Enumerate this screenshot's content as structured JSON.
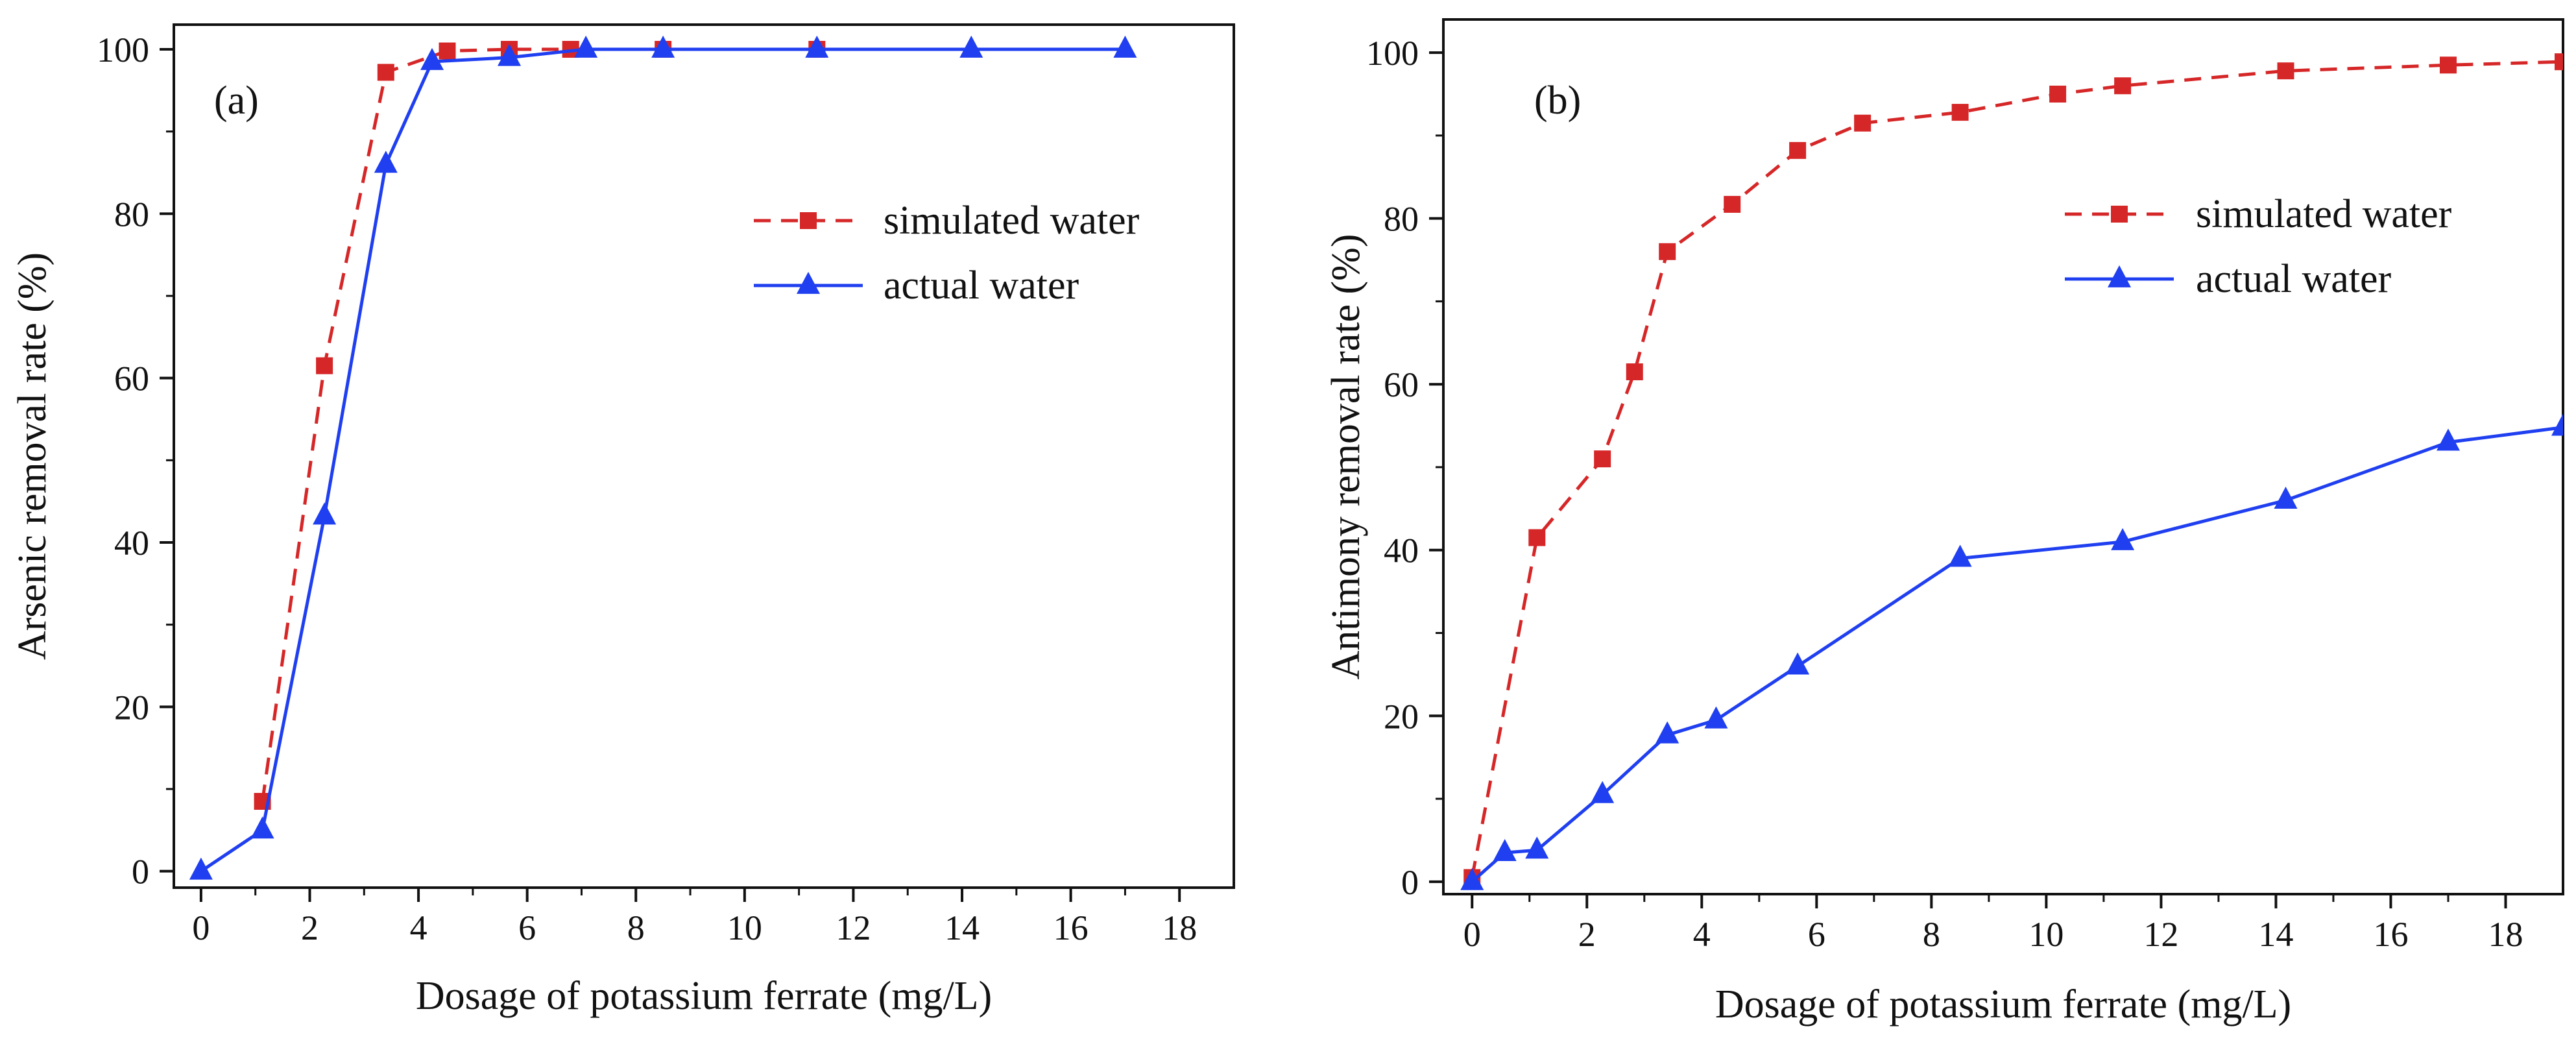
{
  "chart_data": [
    {
      "type": "line",
      "panel_label": "(a)",
      "xlabel": "Dosage of potassium ferrate (mg/L)",
      "ylabel": "Arsenic removal rate (%)",
      "xlim": [
        -0.5,
        19
      ],
      "ylim": [
        -2,
        103
      ],
      "xticks": [
        0,
        2,
        4,
        6,
        8,
        10,
        12,
        14,
        16,
        18
      ],
      "yticks": [
        0,
        20,
        40,
        60,
        80,
        100
      ],
      "legend_position": "upper-right",
      "grid": false,
      "series": [
        {
          "name": "simulated water",
          "color": "#d62728",
          "line_style": "dashed",
          "marker": "square",
          "points": [
            [
              1.13,
              8.5
            ],
            [
              2.27,
              61.5
            ],
            [
              3.4,
              97.2
            ],
            [
              4.53,
              99.8
            ],
            [
              5.67,
              100
            ],
            [
              6.8,
              100
            ],
            [
              8.5,
              100
            ],
            [
              11.33,
              100
            ]
          ]
        },
        {
          "name": "actual water",
          "color": "#1f3ff0",
          "line_style": "solid",
          "marker": "triangle",
          "points": [
            [
              0,
              0
            ],
            [
              1.13,
              5.0
            ],
            [
              2.27,
              43.2
            ],
            [
              3.4,
              86.0
            ],
            [
              4.25,
              98.5
            ],
            [
              5.67,
              99.0
            ],
            [
              7.08,
              100
            ],
            [
              8.5,
              100
            ],
            [
              11.33,
              100
            ],
            [
              14.17,
              100
            ],
            [
              17.0,
              100
            ]
          ]
        }
      ]
    },
    {
      "type": "line",
      "panel_label": "(b)",
      "xlabel": "Dosage of potassium ferrate (mg/L)",
      "ylabel": "Antimony removal rate (%)",
      "xlim": [
        -0.5,
        19
      ],
      "ylim": [
        -1.5,
        104
      ],
      "xticks": [
        0,
        2,
        4,
        6,
        8,
        10,
        12,
        14,
        16,
        18
      ],
      "yticks": [
        0,
        20,
        40,
        60,
        80,
        100
      ],
      "legend_position": "upper-right",
      "grid": false,
      "series": [
        {
          "name": "simulated water",
          "color": "#d62728",
          "line_style": "dashed",
          "marker": "square",
          "points": [
            [
              0,
              0.5
            ],
            [
              1.13,
              41.5
            ],
            [
              2.27,
              51.0
            ],
            [
              2.83,
              61.5
            ],
            [
              3.4,
              76.0
            ],
            [
              4.53,
              81.7
            ],
            [
              5.67,
              88.2
            ],
            [
              6.8,
              91.5
            ],
            [
              8.5,
              92.8
            ],
            [
              10.2,
              95.0
            ],
            [
              11.33,
              96.0
            ],
            [
              14.17,
              97.8
            ],
            [
              17.0,
              98.5
            ],
            [
              19.0,
              98.9
            ]
          ]
        },
        {
          "name": "actual water",
          "color": "#1f3ff0",
          "line_style": "solid",
          "marker": "triangle",
          "points": [
            [
              0,
              0
            ],
            [
              0.57,
              3.5
            ],
            [
              1.13,
              3.8
            ],
            [
              2.27,
              10.5
            ],
            [
              3.4,
              17.7
            ],
            [
              4.25,
              19.5
            ],
            [
              5.67,
              26.0
            ],
            [
              8.5,
              39.0
            ],
            [
              11.33,
              41.0
            ],
            [
              14.17,
              46.0
            ],
            [
              17.0,
              53.0
            ],
            [
              19.0,
              54.8
            ]
          ]
        }
      ]
    }
  ]
}
